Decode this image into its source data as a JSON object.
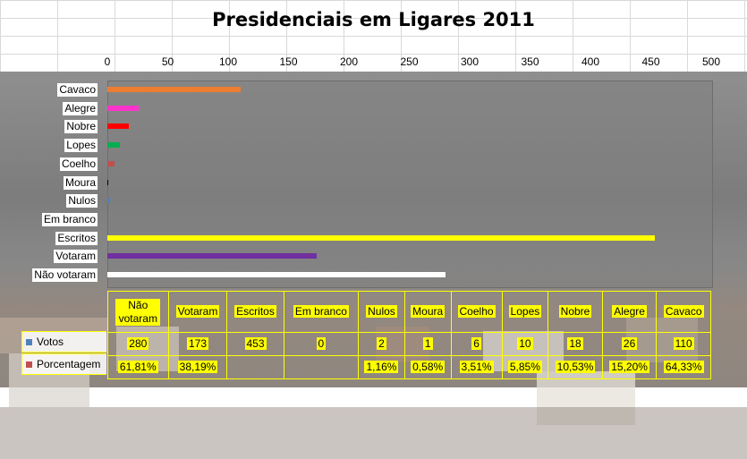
{
  "chart_data": {
    "type": "bar",
    "orientation": "horizontal",
    "title": "Presidenciais  em Ligares 2011",
    "xlim": [
      0,
      500
    ],
    "x_ticks": [
      "0",
      "50",
      "100",
      "150",
      "200",
      "250",
      "300",
      "350",
      "400",
      "450",
      "500"
    ],
    "bar_categories": [
      "Cavaco",
      "Alegre",
      "Nobre",
      "Lopes",
      "Coelho",
      "Moura",
      "Nulos",
      "Em branco",
      "Escritos",
      "Votaram",
      "Não votaram"
    ],
    "bar_values": [
      110,
      26,
      18,
      10,
      6,
      1,
      2,
      0,
      453,
      173,
      280
    ],
    "bar_colors": [
      "#ed7d31",
      "#ff33cc",
      "#ff0000",
      "#00b050",
      "#c0504d",
      "#000000",
      "#4f81bd",
      "#ffffff",
      "#ffff00",
      "#7030a0",
      "#ffffff"
    ],
    "table": {
      "columns": [
        "Não votaram",
        "Votaram",
        "Escritos",
        "Em branco",
        "Nulos",
        "Moura",
        "Coelho",
        "Lopes",
        "Nobre",
        "Alegre",
        "Cavaco"
      ],
      "series": [
        {
          "name": "Votos",
          "color": "#4f81bd",
          "values": [
            "280",
            "173",
            "453",
            "0",
            "2",
            "1",
            "6",
            "10",
            "18",
            "26",
            "110"
          ]
        },
        {
          "name": "Porcentagem",
          "color": "#c0504d",
          "values": [
            "61,81%",
            "38,19%",
            "",
            "",
            "1,16%",
            "0,58%",
            "3,51%",
            "5,85%",
            "10,53%",
            "15,20%",
            "64,33%"
          ]
        }
      ]
    },
    "grid": false
  }
}
